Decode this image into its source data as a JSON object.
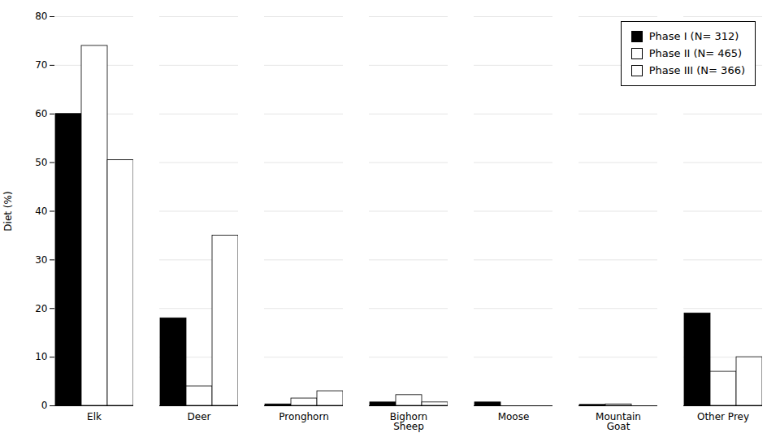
{
  "chart_data": {
    "type": "bar",
    "categories": [
      "Elk",
      "Deer",
      "Pronghorn",
      "Bighorn\nSheep",
      "Moose",
      "Mountain\nGoat",
      "Other Prey"
    ],
    "series": [
      {
        "name": "Phase I (N= 312)",
        "color": "#000000",
        "values": [
          60,
          18,
          0.3,
          0.7,
          0.7,
          0.2,
          19
        ]
      },
      {
        "name": "Phase II (N= 465)",
        "color": "#ffffff",
        "values": [
          74,
          4,
          1.5,
          2.2,
          0,
          0.3,
          7
        ]
      },
      {
        "name": "Phase III (N= 366)",
        "color": "#ffffff",
        "values": [
          50.5,
          35,
          3,
          0.7,
          0,
          0,
          10
        ]
      }
    ],
    "ylabel": "Diet (%)",
    "ylim": [
      0,
      80
    ],
    "yticks": [
      0,
      10,
      20,
      30,
      40,
      50,
      60,
      70,
      80
    ],
    "grid": true,
    "legend": "upper right"
  }
}
